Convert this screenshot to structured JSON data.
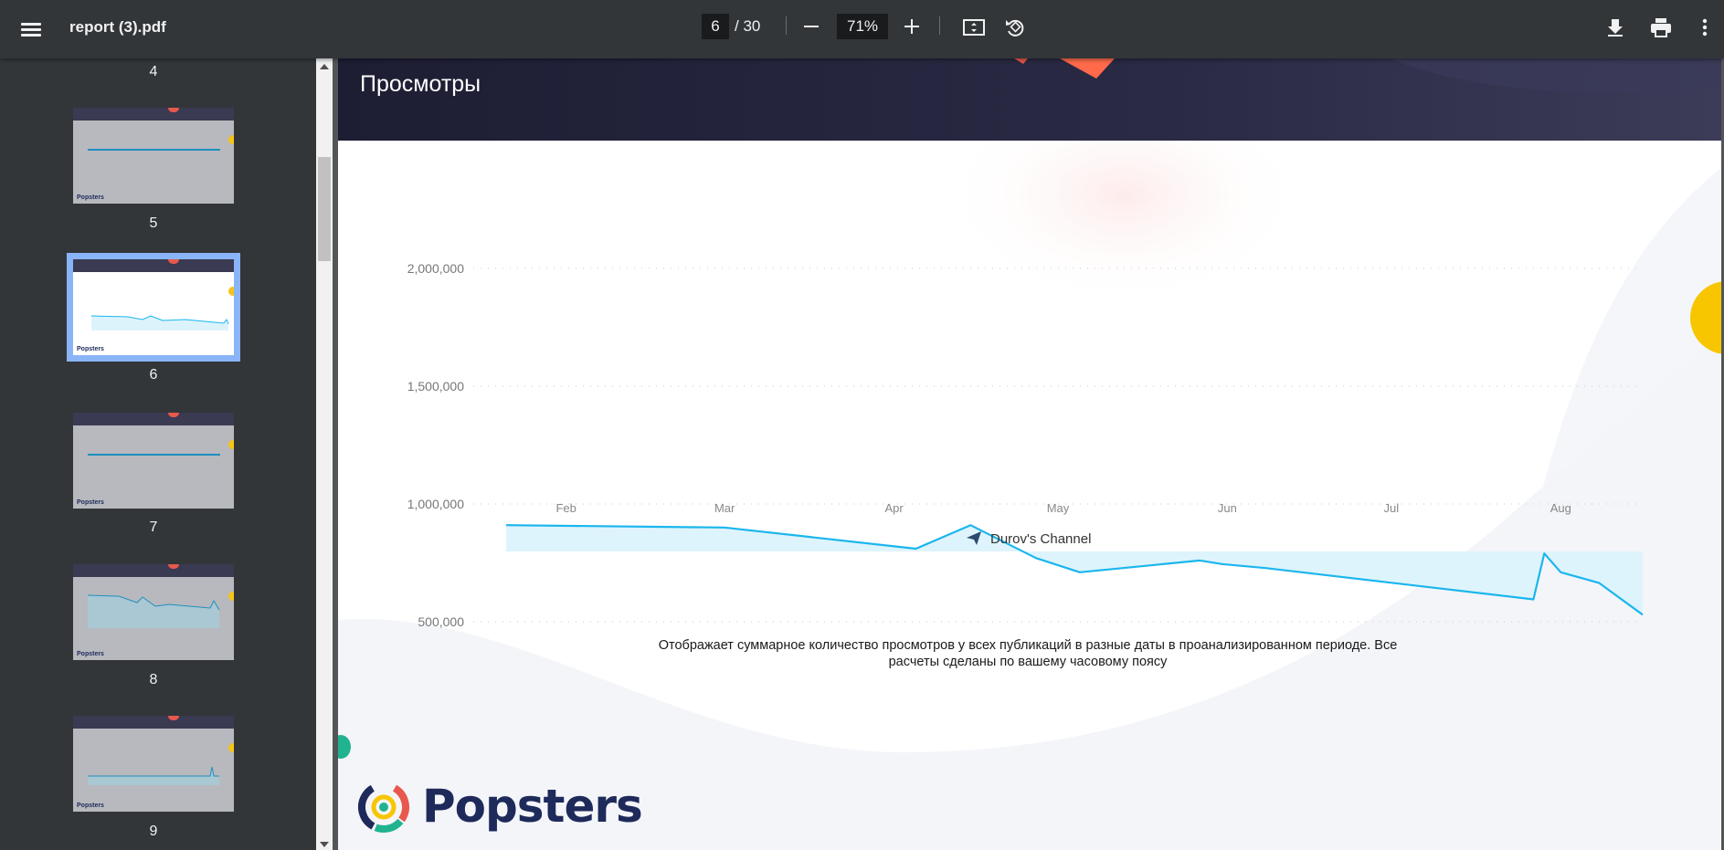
{
  "toolbar": {
    "title": "report (3).pdf",
    "current_page": "6",
    "total_pages": "/ 30",
    "zoom": "71%",
    "icons": [
      "menu-icon",
      "zoom-out-icon",
      "zoom-in-icon",
      "fit-page-icon",
      "rotate-icon",
      "download-icon",
      "print-icon",
      "more-vert-icon"
    ]
  },
  "sidebar": {
    "thumbnails": [
      {
        "label": "4"
      },
      {
        "label": "5"
      },
      {
        "label": "6",
        "selected": true
      },
      {
        "label": "7"
      },
      {
        "label": "8"
      },
      {
        "label": "9"
      }
    ]
  },
  "page": {
    "title": "Просмотры",
    "caption": "Отображает суммарное количество просмотров у всех публикаций в разные даты в проанализированном периоде. Все расчеты сделаны по вашему часовому поясу",
    "logo": "Popsters",
    "colors": {
      "line": "#1ab6ee",
      "fill": "#dcf3fc",
      "header": "#1d1d33",
      "accent_yellow": "#f7c600"
    }
  },
  "chart_data": {
    "type": "area",
    "y_ticks": [
      "2,000,000",
      "1,500,000",
      "1,000,000",
      "500,000"
    ],
    "y_tick_values": [
      2000000,
      1500000,
      1000000,
      500000
    ],
    "x_ticks": [
      "Feb",
      "Mar",
      "Apr",
      "May",
      "Jun",
      "Jul",
      "Aug"
    ],
    "ylim": [
      500000,
      2000000
    ],
    "grid": true,
    "legend": "bottom-center",
    "series": [
      {
        "name": "Durov's Channel",
        "points": [
          {
            "date": "2024-01-21",
            "value": 910000
          },
          {
            "date": "2024-03-01",
            "value": 900000
          },
          {
            "date": "2024-04-05",
            "value": 810000
          },
          {
            "date": "2024-04-15",
            "value": 910000
          },
          {
            "date": "2024-04-27",
            "value": 770000
          },
          {
            "date": "2024-05-05",
            "value": 710000
          },
          {
            "date": "2024-05-27",
            "value": 760000
          },
          {
            "date": "2024-05-31",
            "value": 745000
          },
          {
            "date": "2024-06-08",
            "value": 728000
          },
          {
            "date": "2024-07-27",
            "value": 595000
          },
          {
            "date": "2024-07-29",
            "value": 790000
          },
          {
            "date": "2024-08-01",
            "value": 710000
          },
          {
            "date": "2024-08-08",
            "value": 665000
          },
          {
            "date": "2024-08-16",
            "value": 530000
          }
        ]
      }
    ]
  }
}
